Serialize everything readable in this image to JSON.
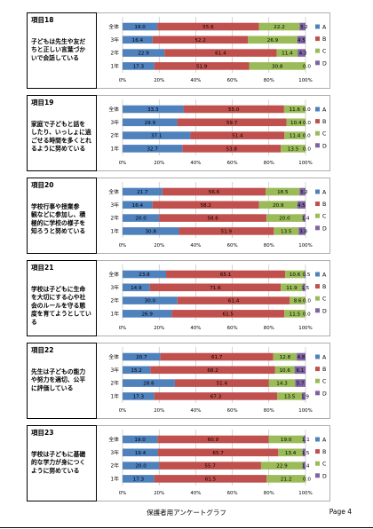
{
  "footer": {
    "title": "保護者用アンケートグラフ",
    "page": "Page 4"
  },
  "legend": [
    {
      "label": "A",
      "color": "#4f81bd"
    },
    {
      "label": "B",
      "color": "#c0504d"
    },
    {
      "label": "C",
      "color": "#9bbb59"
    },
    {
      "label": "D",
      "color": "#8064a2"
    }
  ],
  "chart_data": [
    {
      "type": "bar",
      "stacked": true,
      "orientation": "horizontal",
      "item": "項目18",
      "question": [
        "子どもは先生や友だ",
        "ちと正しい言葉づか",
        "いで会話している"
      ],
      "categories": [
        "全体",
        "3年",
        "2年",
        "1年"
      ],
      "values": [
        [
          19.0,
          55.6,
          22.2,
          3.2
        ],
        [
          16.4,
          52.2,
          26.9,
          4.5
        ],
        [
          22.9,
          61.4,
          11.4,
          4.3
        ],
        [
          17.3,
          51.9,
          30.8,
          0.0
        ]
      ],
      "xticks": [
        "0%",
        "20%",
        "40%",
        "60%",
        "80%",
        "100%"
      ],
      "xlim": [
        0,
        100
      ]
    },
    {
      "type": "bar",
      "stacked": true,
      "orientation": "horizontal",
      "item": "項目19",
      "question": [
        "家庭で子どもと話を",
        "したり、いっしょに過",
        "ごせる時間を多くとれ",
        "るように努めている"
      ],
      "categories": [
        "全体",
        "3年",
        "2年",
        "1年"
      ],
      "values": [
        [
          33.3,
          55.0,
          11.6,
          0.0
        ],
        [
          29.9,
          59.7,
          10.4,
          0.0
        ],
        [
          37.1,
          51.4,
          11.4,
          0.0
        ],
        [
          32.7,
          53.8,
          13.5,
          0.0
        ]
      ],
      "xticks": [
        "0%",
        "20%",
        "40%",
        "60%",
        "80%",
        "100%"
      ],
      "xlim": [
        0,
        100
      ]
    },
    {
      "type": "bar",
      "stacked": true,
      "orientation": "horizontal",
      "item": "項目20",
      "question": [
        "学校行事や授業参",
        "観などに参加し、積",
        "極的に学校の様子を",
        "知ろうと努めている"
      ],
      "categories": [
        "全体",
        "3年",
        "2年",
        "1年"
      ],
      "values": [
        [
          21.7,
          56.6,
          18.5,
          3.2
        ],
        [
          16.4,
          58.2,
          20.9,
          4.5
        ],
        [
          20.0,
          58.6,
          20.0,
          1.4
        ],
        [
          30.8,
          51.9,
          13.5,
          3.8
        ]
      ],
      "xticks": [
        "0%",
        "20%",
        "40%",
        "60%",
        "80%",
        "100%"
      ],
      "xlim": [
        0,
        100
      ]
    },
    {
      "type": "bar",
      "stacked": true,
      "orientation": "horizontal",
      "item": "項目21",
      "question": [
        "学校は子どもに生命",
        "を大切にする心や社",
        "会のルールを守る態",
        "度を育てようとしてい",
        "る"
      ],
      "categories": [
        "全体",
        "3年",
        "2年",
        "1年"
      ],
      "values": [
        [
          23.8,
          65.1,
          10.6,
          0.5
        ],
        [
          14.9,
          71.6,
          11.9,
          1.5
        ],
        [
          30.0,
          61.4,
          8.6,
          0.0
        ],
        [
          26.9,
          61.5,
          11.5,
          0.0
        ]
      ],
      "xticks": [
        "0%",
        "20%",
        "40%",
        "60%",
        "80%",
        "100%"
      ],
      "xlim": [
        0,
        100
      ]
    },
    {
      "type": "bar",
      "stacked": true,
      "orientation": "horizontal",
      "item": "項目22",
      "question": [
        "先生は子どもの能力",
        "や努力を適切、公平",
        "に評価している"
      ],
      "categories": [
        "全体",
        "3年",
        "2年",
        "1年"
      ],
      "values": [
        [
          20.7,
          61.7,
          12.8,
          4.8
        ],
        [
          15.2,
          68.2,
          10.6,
          6.1
        ],
        [
          28.6,
          51.4,
          14.3,
          5.7
        ],
        [
          17.3,
          67.3,
          13.5,
          1.9
        ]
      ],
      "xticks": [
        "0%",
        "20%",
        "40%",
        "60%",
        "80%",
        "100%"
      ],
      "xlim": [
        0,
        100
      ]
    },
    {
      "type": "bar",
      "stacked": true,
      "orientation": "horizontal",
      "item": "項目23",
      "question": [
        "学校は子どもに基礎",
        "的な学力が身につく",
        "ように努めている"
      ],
      "categories": [
        "全体",
        "3年",
        "2年",
        "1年"
      ],
      "values": [
        [
          19.0,
          60.9,
          19.0,
          1.1
        ],
        [
          19.4,
          65.7,
          13.4,
          1.5
        ],
        [
          20.0,
          55.7,
          22.9,
          1.4
        ],
        [
          17.3,
          61.5,
          21.2,
          0.0
        ]
      ],
      "xticks": [
        "0%",
        "20%",
        "40%",
        "60%",
        "80%",
        "100%"
      ],
      "xlim": [
        0,
        100
      ]
    }
  ]
}
